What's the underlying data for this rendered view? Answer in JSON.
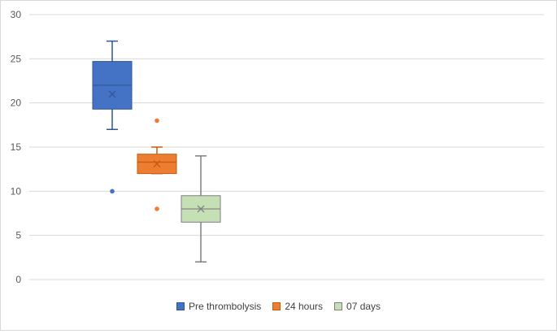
{
  "chart_data": {
    "type": "box",
    "title": "",
    "xlabel": "",
    "ylabel": "",
    "ylim": [
      0,
      30
    ],
    "yticks": [
      0,
      5,
      10,
      15,
      20,
      25,
      30
    ],
    "grid": true,
    "legend_position": "bottom",
    "series": [
      {
        "name": "Pre thrombolysis",
        "color": "#4472c4",
        "edge": "#2f5597",
        "min": 17,
        "q1": 19.3,
        "median": 22,
        "q3": 24.7,
        "max": 27,
        "mean": 21,
        "outliers": [
          10
        ]
      },
      {
        "name": "24 hours",
        "color": "#ed7d31",
        "edge": "#c55a11",
        "min": 12,
        "q1": 12,
        "median": 13.3,
        "q3": 14.2,
        "max": 15,
        "mean": 13.1,
        "outliers": [
          18,
          8
        ]
      },
      {
        "name": "07 days",
        "color": "#c5e0b4",
        "edge": "#7f7f7f",
        "min": 2,
        "q1": 6.5,
        "median": 8,
        "q3": 9.5,
        "max": 14,
        "mean": 8,
        "outliers": []
      }
    ]
  }
}
